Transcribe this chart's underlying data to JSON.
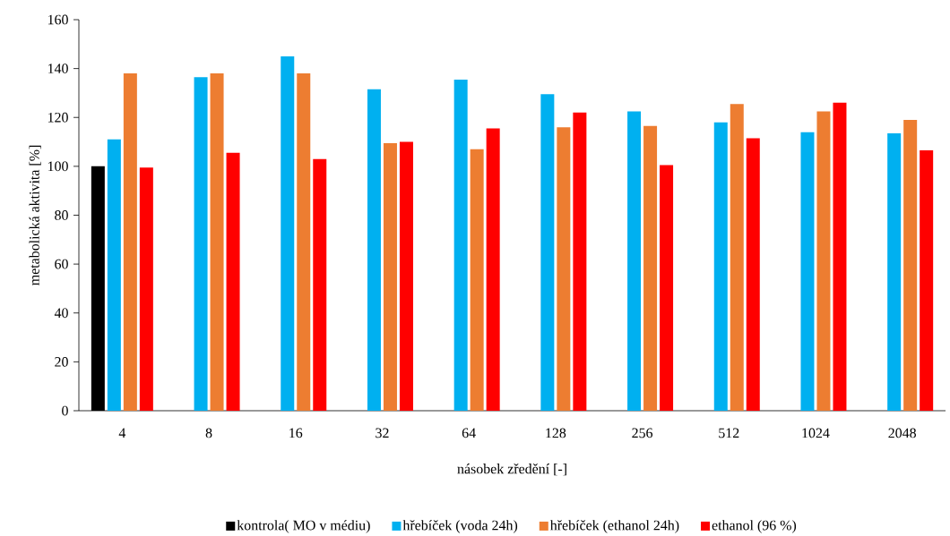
{
  "chart_data": {
    "type": "bar",
    "xlabel": "násobek zředění [-]",
    "ylabel": "metabolická aktivita [%]",
    "categories": [
      "4",
      "8",
      "16",
      "32",
      "64",
      "128",
      "256",
      "512",
      "1024",
      "2048"
    ],
    "series": [
      {
        "name": "kontrola( MO v médiu)",
        "color": "#000000",
        "values": [
          100,
          null,
          null,
          null,
          null,
          null,
          null,
          null,
          null,
          null
        ]
      },
      {
        "name": "hřebíček (voda 24h)",
        "color": "#00b0f0",
        "values": [
          111,
          136.5,
          145,
          131.5,
          135.5,
          129.5,
          122.5,
          118,
          114,
          113.5
        ]
      },
      {
        "name": "hřebíček (ethanol 24h)",
        "color": "#ed7d31",
        "values": [
          138,
          138,
          138,
          109.5,
          107,
          116,
          116.5,
          125.5,
          122.5,
          119
        ]
      },
      {
        "name": "ethanol (96 %)",
        "color": "#ff0000",
        "values": [
          99.5,
          105.5,
          103,
          110,
          115.5,
          122,
          100.5,
          111.5,
          126,
          106.5
        ]
      }
    ],
    "ylim": [
      0,
      160
    ],
    "yticks": [
      0,
      20,
      40,
      60,
      80,
      100,
      120,
      140,
      160
    ],
    "legend": "bottom"
  }
}
